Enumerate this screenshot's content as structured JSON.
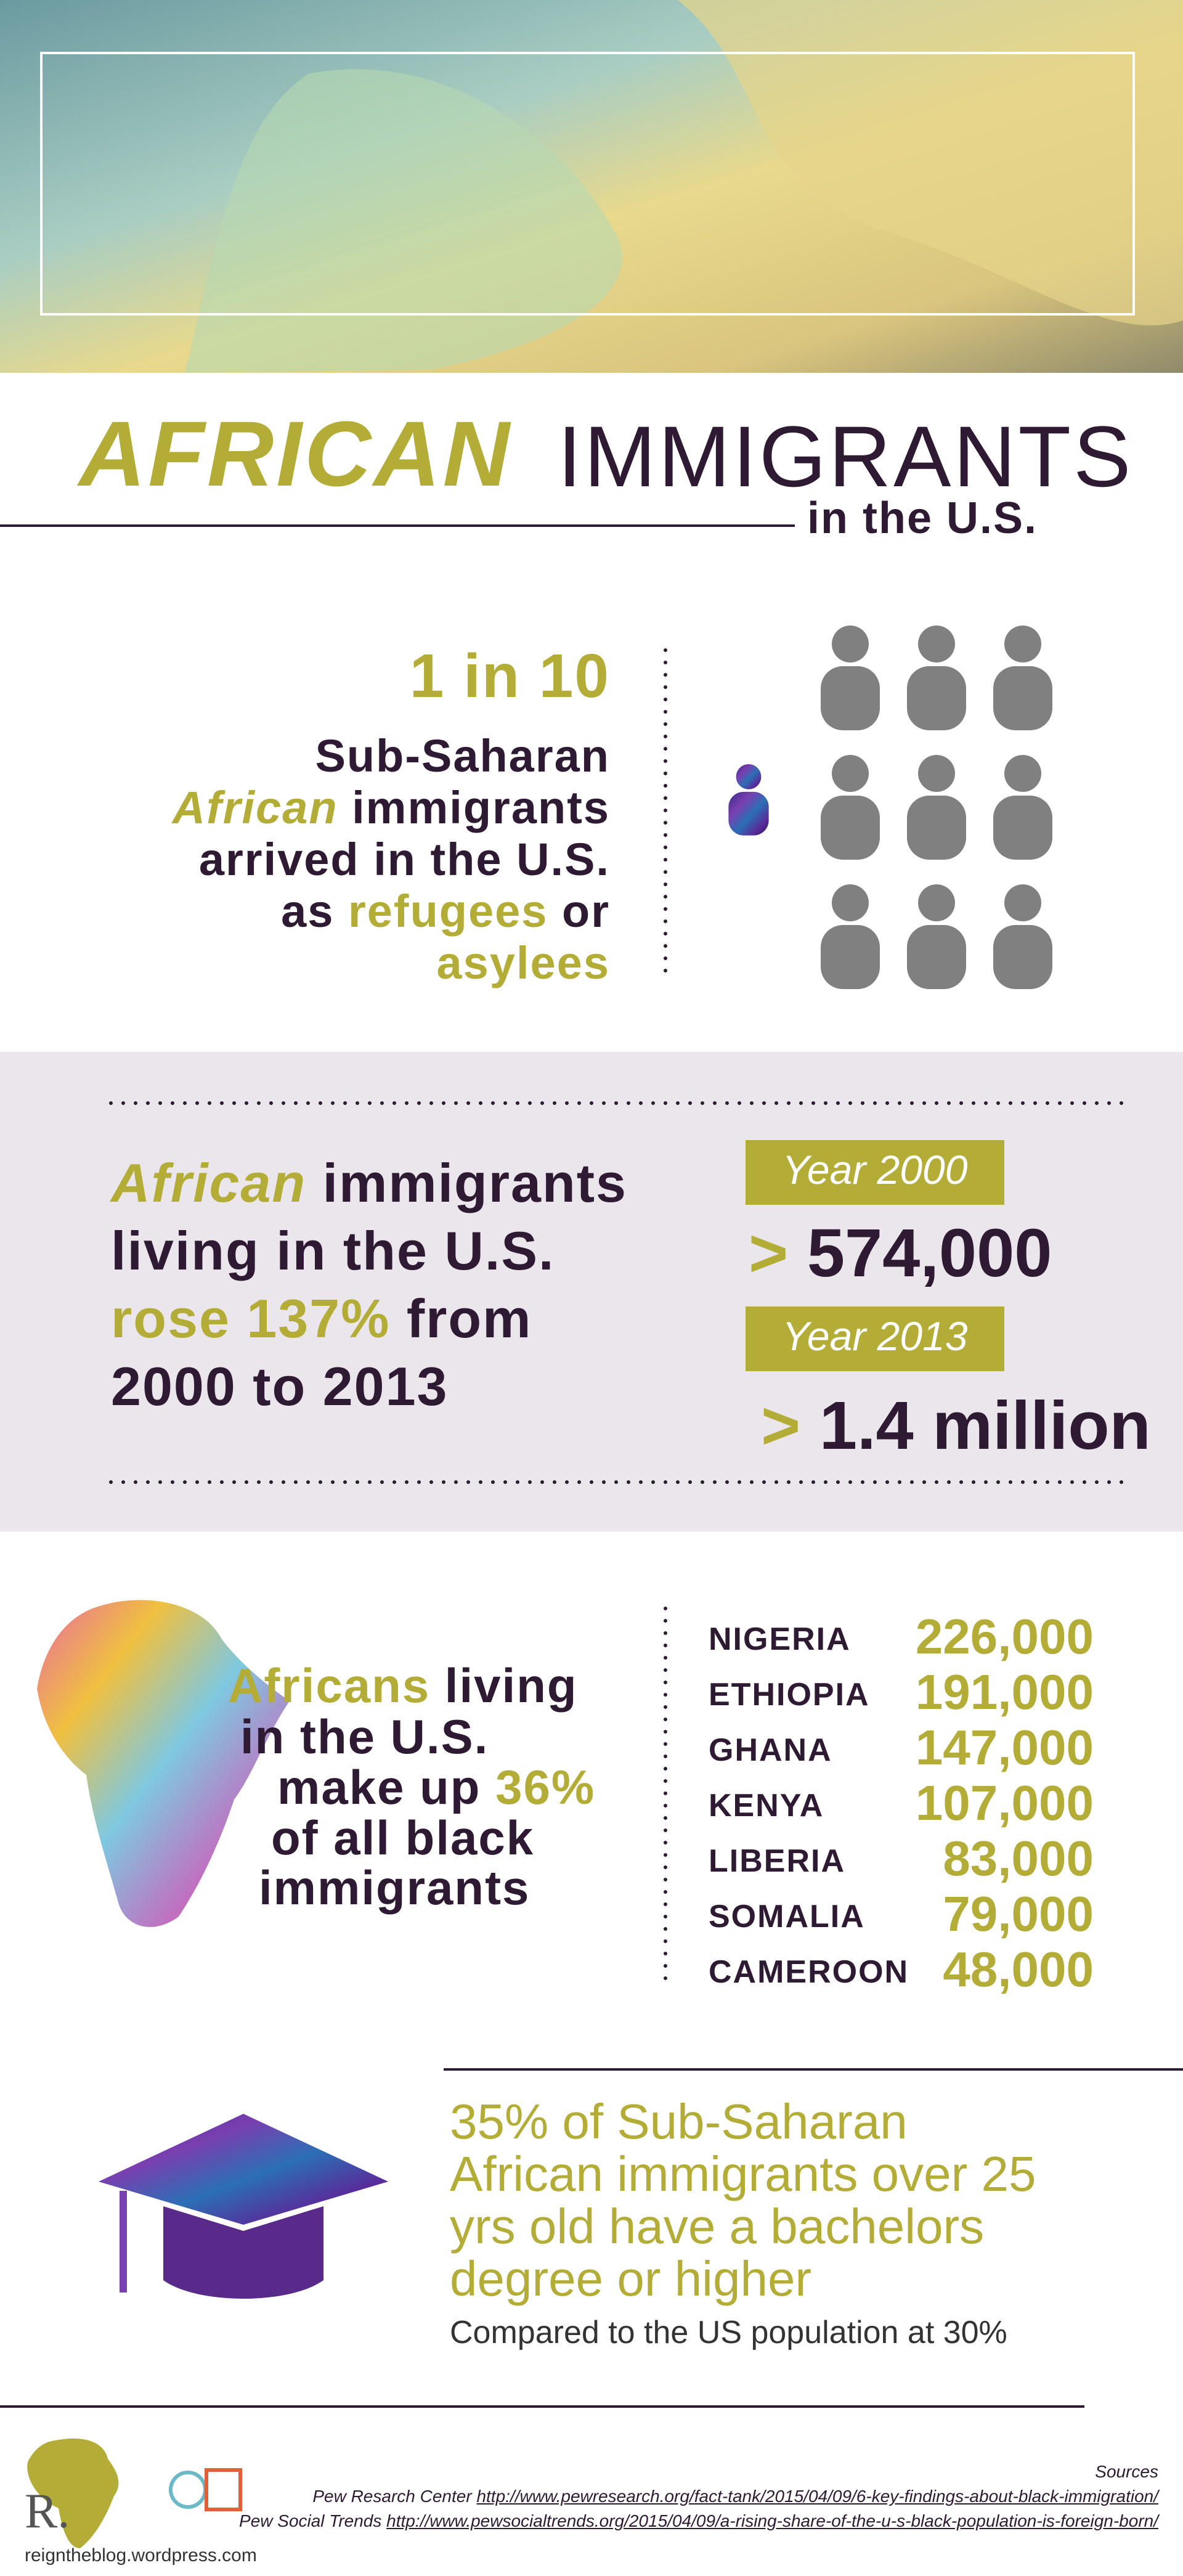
{
  "header": {
    "title_emphasis": "AFRICAN",
    "title_rest": "IMMIGRANTS",
    "subtitle": "in the U.S."
  },
  "refugees": {
    "stat": "1 in 10",
    "lines": [
      [
        "Sub-Saharan"
      ],
      [
        "African",
        "immigrants"
      ],
      [
        "arrived in the U.S."
      ],
      [
        "as",
        "refugees",
        "or"
      ],
      [
        "asylees"
      ]
    ]
  },
  "growth": {
    "lines": [
      [
        "African",
        "immigrants"
      ],
      [
        "living in the U.S."
      ],
      [
        "rose 137%",
        "from"
      ],
      [
        "2000 to 2013"
      ]
    ],
    "years": [
      {
        "label": "Year 2000",
        "prefix": ">",
        "amount": "574,000"
      },
      {
        "label": "Year 2013",
        "prefix": ">",
        "amount": "1.4 million"
      }
    ]
  },
  "share": {
    "lines": [
      [
        "Africans",
        "living"
      ],
      [
        "in the U.S."
      ],
      [
        "make up",
        "36%"
      ],
      [
        "of all black"
      ],
      [
        "immigrants"
      ]
    ],
    "countries": [
      [
        "NIGERIA",
        "226,000"
      ],
      [
        "ETHIOPIA",
        "191,000"
      ],
      [
        "GHANA",
        "147,000"
      ],
      [
        "KENYA",
        "107,000"
      ],
      [
        "LIBERIA",
        "83,000"
      ],
      [
        "SOMALIA",
        "79,000"
      ],
      [
        "CAMEROON",
        "48,000"
      ]
    ]
  },
  "education": {
    "lines": [
      "35% of Sub-Saharan",
      "African immigrants over 25",
      "yrs old have a bachelors",
      "degree or higher"
    ],
    "compare": "Compared to the US population at 30%"
  },
  "footer": {
    "logo_letter": "R.",
    "site": "reigntheblog.wordpress.com",
    "sources_heading": "Sources",
    "sources": [
      {
        "name": "Pew Resarch Center",
        "url": "http://www.pewresearch.org/fact-tank/2015/04/09/6-key-findings-about-black-immigration/"
      },
      {
        "name": "Pew Social Trends",
        "url": "http://www.pewsocialtrends.org/2015/04/09/a-rising-share-of-the-u-s-black-population-is-foreign-born/"
      }
    ]
  }
}
